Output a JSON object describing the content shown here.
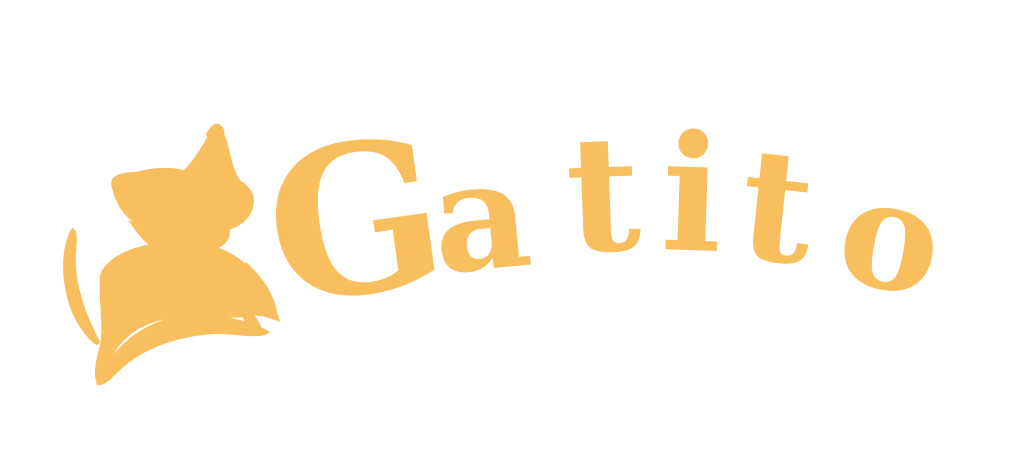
{
  "logo": {
    "wordmark": "Gatito",
    "letters": [
      "G",
      "a",
      "t",
      "i",
      "t",
      "o"
    ],
    "brand_color": "#F9BE5D",
    "background_color": "#FFFFFF",
    "icon": "cat-silhouette-icon"
  }
}
